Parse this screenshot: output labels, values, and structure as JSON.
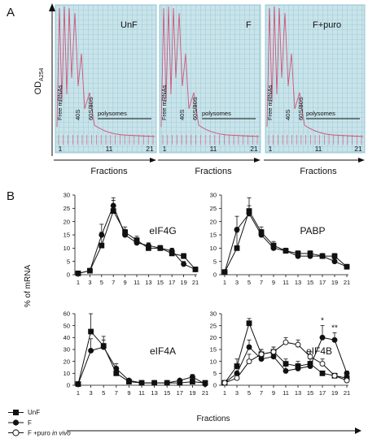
{
  "panel_a": {
    "letter": "A",
    "y_label_main": "OD",
    "y_label_sub": "A254",
    "x_label": "Fractions",
    "axis_ticks": [
      "1",
      "11",
      "21"
    ],
    "profiles": [
      {
        "name": "UnF",
        "labels": [
          "Free mRNAs",
          "40S",
          "60S/80S"
        ],
        "polysome_label": "polysomes"
      },
      {
        "name": "F",
        "labels": [
          "Free mRNAs",
          "40S",
          "60S/80S"
        ],
        "polysome_label": "polysomes"
      },
      {
        "name": "F+puro",
        "labels": [
          "Free mRNAs",
          "40S",
          "60S/80S"
        ],
        "polysome_label": "polysomes"
      }
    ]
  },
  "panel_b": {
    "letter": "B",
    "ylabel": "% of mRNA",
    "xlabel": "Fractions",
    "legend": [
      {
        "label": "UnF",
        "marker": "square-filled"
      },
      {
        "label": "F",
        "marker": "circle-filled"
      },
      {
        "label_main": "F +puro ",
        "label_italic": "in vivo",
        "marker": "circle-open"
      }
    ]
  },
  "colors": {
    "grid_bg": "#c9e3ea",
    "grid_line": "#7fbccb",
    "trace": "#d05578",
    "ink": "#111111"
  },
  "chart_data": [
    {
      "type": "line",
      "title": "eIF4G",
      "x": [
        1,
        3,
        5,
        7,
        9,
        11,
        13,
        15,
        17,
        19,
        21
      ],
      "ylim": [
        0,
        30
      ],
      "yticks": [
        0,
        5,
        10,
        15,
        20,
        25,
        30
      ],
      "series": [
        {
          "name": "UnF",
          "values": [
            0.5,
            1.5,
            11,
            24,
            16,
            13,
            10,
            10,
            8,
            7,
            2
          ],
          "errors": [
            0,
            0.5,
            5,
            4,
            2,
            1.5,
            1,
            1,
            1,
            1,
            0.5
          ]
        },
        {
          "name": "F",
          "values": [
            0.5,
            1.5,
            15,
            26,
            15,
            12,
            11,
            10,
            9,
            4,
            2
          ],
          "errors": [
            0,
            0.5,
            4,
            3,
            2,
            1.5,
            1,
            1,
            1,
            1,
            0.5
          ]
        }
      ]
    },
    {
      "type": "line",
      "title": "PABP",
      "x": [
        1,
        3,
        5,
        7,
        9,
        11,
        13,
        15,
        17,
        19,
        21
      ],
      "ylim": [
        0,
        30
      ],
      "yticks": [
        0,
        5,
        10,
        15,
        20,
        25,
        30
      ],
      "series": [
        {
          "name": "UnF",
          "values": [
            1,
            10,
            24,
            16,
            11,
            9,
            8,
            8,
            7,
            7,
            3
          ],
          "errors": [
            0,
            6,
            5,
            2,
            1.5,
            1,
            1,
            1,
            1,
            1,
            0.5
          ]
        },
        {
          "name": "F",
          "values": [
            1,
            17,
            23,
            15,
            10,
            9,
            7,
            7,
            7,
            5,
            3
          ],
          "errors": [
            0,
            5,
            3,
            2,
            1.5,
            1,
            1,
            1,
            1,
            1,
            0.5
          ]
        }
      ]
    },
    {
      "type": "line",
      "title": "eIF4A",
      "x": [
        1,
        3,
        5,
        7,
        9,
        11,
        13,
        15,
        17,
        19,
        21
      ],
      "ylim": [
        0,
        60
      ],
      "yticks": [
        0,
        10,
        20,
        30,
        40,
        50,
        60
      ],
      "series": [
        {
          "name": "UnF",
          "values": [
            1,
            45,
            33,
            10,
            3,
            2,
            2,
            2,
            2,
            3,
            2
          ],
          "errors": [
            0,
            15,
            8,
            3,
            1,
            0.5,
            0.5,
            0.5,
            0.5,
            1,
            0.5
          ]
        },
        {
          "name": "F",
          "values": [
            1,
            29,
            32,
            14,
            4,
            2,
            2,
            2,
            4,
            7,
            1
          ],
          "errors": [
            0,
            10,
            6,
            4,
            1,
            0.5,
            0.5,
            0.5,
            1,
            2,
            0.5
          ]
        }
      ]
    },
    {
      "type": "line",
      "title": "eIF4B",
      "x": [
        1,
        3,
        5,
        7,
        9,
        11,
        13,
        15,
        17,
        19,
        21
      ],
      "ylim": [
        0,
        30
      ],
      "yticks": [
        0,
        5,
        10,
        15,
        20,
        25,
        30
      ],
      "annotations": [
        {
          "x": 17,
          "text": "*"
        },
        {
          "x": 19,
          "text": "**"
        }
      ],
      "series": [
        {
          "name": "UnF",
          "values": [
            1,
            8,
            26,
            13,
            14,
            9,
            8,
            9,
            5,
            4,
            3
          ],
          "errors": [
            0,
            3,
            2,
            2,
            2,
            2,
            2,
            2,
            1,
            1,
            0.5
          ]
        },
        {
          "name": "F",
          "values": [
            1,
            5,
            16,
            11,
            12,
            6,
            7,
            8,
            20,
            19,
            5
          ],
          "errors": [
            0,
            2,
            3,
            2,
            2,
            2,
            2,
            2,
            5,
            3,
            1
          ]
        },
        {
          "name": "F +puro in vivo",
          "values": [
            1,
            3,
            10,
            13,
            14,
            18,
            17,
            12,
            9,
            4,
            2
          ],
          "errors": [
            0,
            2,
            3,
            2,
            2,
            2,
            2,
            2,
            2,
            1,
            0.5
          ]
        }
      ]
    }
  ]
}
